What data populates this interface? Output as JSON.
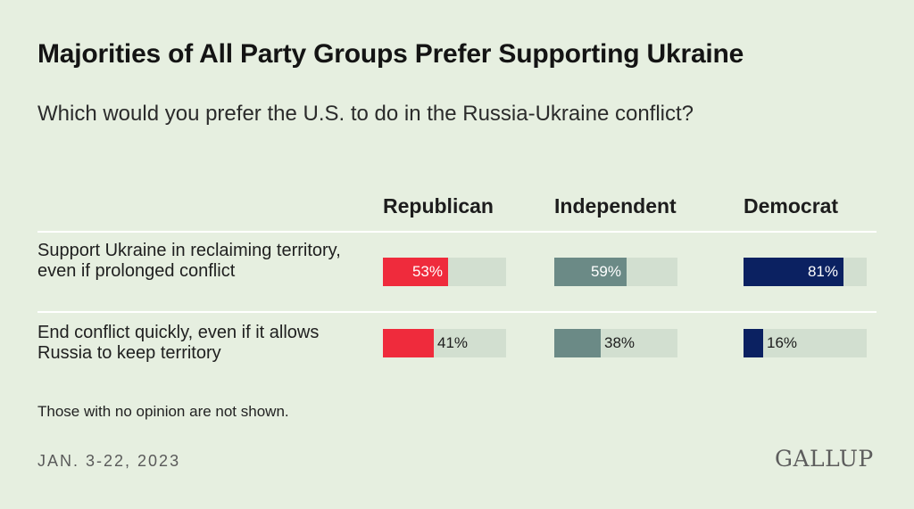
{
  "chart_data": {
    "type": "bar",
    "title": "Majorities of All Party Groups Prefer Supporting Ukraine",
    "subtitle": "Which would you prefer the U.S. to do in the Russia-Ukraine conflict?",
    "categories": [
      "Support Ukraine in reclaiming territory, even if prolonged conflict",
      "End conflict quickly, even if it allows Russia to keep territory"
    ],
    "series": [
      {
        "name": "Republican",
        "values": [
          53,
          41
        ],
        "labels": [
          "53%",
          "41%"
        ],
        "color": "#ef2b3c"
      },
      {
        "name": "Independent",
        "values": [
          59,
          38
        ],
        "labels": [
          "59%",
          "38%"
        ],
        "color": "#6b8a86"
      },
      {
        "name": "Democrat",
        "values": [
          81,
          16
        ],
        "labels": [
          "81%",
          "16%"
        ],
        "color": "#0b2161"
      }
    ],
    "xlim": [
      0,
      100
    ],
    "legend": "column-headers-top"
  },
  "note": "Those with no opinion are not shown.",
  "date": "JAN. 3-22, 2023",
  "brand": "GALLUP",
  "colors": {
    "background": "#e6efe0",
    "track": "#d2dfd0"
  }
}
